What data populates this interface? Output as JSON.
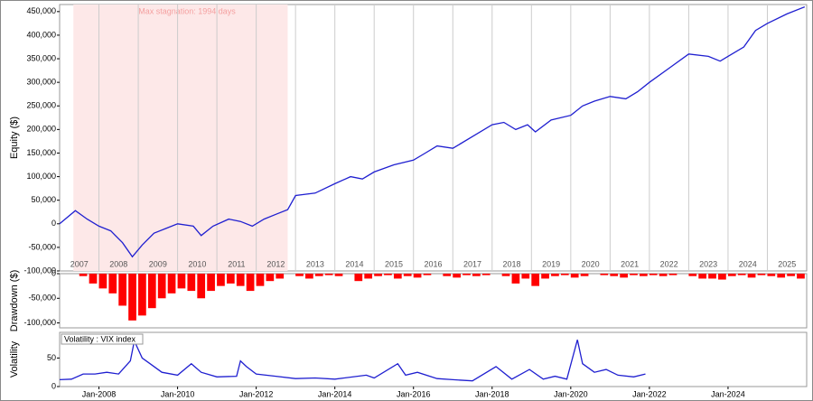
{
  "chart_data": [
    {
      "type": "line",
      "y_label": "Equity ($)",
      "xlim": [
        2007,
        2026
      ],
      "ylim": [
        -100000,
        465000
      ],
      "yticks": [
        {
          "value": -100000,
          "label": "-100,000"
        },
        {
          "value": -50000,
          "label": "-50,000"
        },
        0,
        {
          "value": 50000,
          "label": "50,000"
        },
        {
          "value": 100000,
          "label": "100,000"
        },
        {
          "value": 150000,
          "label": "150,000"
        },
        {
          "value": 200000,
          "label": "200,000"
        },
        {
          "value": 250000,
          "label": "250,000"
        },
        {
          "value": 300000,
          "label": "300,000"
        },
        {
          "value": 350000,
          "label": "350,000"
        },
        {
          "value": 400000,
          "label": "400,000"
        },
        {
          "value": 450000,
          "label": "450,000"
        }
      ],
      "xticks": [
        {
          "value": 2007,
          "label": "2007"
        },
        {
          "value": 2008,
          "label": "2008"
        },
        {
          "value": 2009,
          "label": "2009"
        },
        {
          "value": 2010,
          "label": "2010"
        },
        {
          "value": 2011,
          "label": "2011"
        },
        {
          "value": 2012,
          "label": "2012"
        },
        {
          "value": 2013,
          "label": "2013"
        },
        {
          "value": 2014,
          "label": "2014"
        },
        {
          "value": 2015,
          "label": "2015"
        },
        {
          "value": 2016,
          "label": "2016"
        },
        {
          "value": 2017,
          "label": "2017"
        },
        {
          "value": 2018,
          "label": "2018"
        },
        {
          "value": 2019,
          "label": "2019"
        },
        {
          "value": 2020,
          "label": "2020"
        },
        {
          "value": 2021,
          "label": "2021"
        },
        {
          "value": 2022,
          "label": "2022"
        },
        {
          "value": 2023,
          "label": "2023"
        },
        {
          "value": 2024,
          "label": "2024"
        },
        {
          "value": 2025,
          "label": "2025"
        }
      ],
      "annotation": {
        "text": "Max stagnation: 1994 days",
        "span": [
          2007.35,
          2012.8
        ],
        "color": "#fde8e8"
      },
      "series": [
        {
          "color": "#1f1fd0",
          "x": [
            2007.0,
            2007.4,
            2007.7,
            2008.0,
            2008.3,
            2008.6,
            2008.85,
            2009.1,
            2009.4,
            2009.7,
            2010.0,
            2010.4,
            2010.6,
            2010.9,
            2011.3,
            2011.6,
            2011.9,
            2012.2,
            2012.5,
            2012.8,
            2013.0,
            2013.5,
            2014.0,
            2014.4,
            2014.7,
            2015.0,
            2015.5,
            2016.0,
            2016.3,
            2016.6,
            2017.0,
            2017.5,
            2018.0,
            2018.3,
            2018.6,
            2018.9,
            2019.1,
            2019.5,
            2020.0,
            2020.3,
            2020.6,
            2021.0,
            2021.4,
            2021.7,
            2022.0,
            2022.5,
            2023.0,
            2023.5,
            2023.8,
            2024.0,
            2024.4,
            2024.7,
            2025.0,
            2025.5,
            2025.95
          ],
          "values": [
            0,
            28000,
            10000,
            -5000,
            -15000,
            -40000,
            -70000,
            -45000,
            -20000,
            -10000,
            0,
            -5000,
            -25000,
            -5000,
            10000,
            5000,
            -5000,
            10000,
            20000,
            30000,
            60000,
            65000,
            85000,
            100000,
            95000,
            110000,
            125000,
            135000,
            150000,
            165000,
            160000,
            185000,
            210000,
            215000,
            200000,
            210000,
            195000,
            220000,
            230000,
            250000,
            260000,
            270000,
            265000,
            280000,
            300000,
            330000,
            360000,
            355000,
            345000,
            355000,
            375000,
            410000,
            425000,
            445000,
            460000
          ]
        }
      ]
    },
    {
      "type": "bar",
      "y_label": "Drawdown ($)",
      "xlim": [
        2007,
        2026
      ],
      "ylim": [
        -110000,
        0
      ],
      "yticks": [
        0,
        {
          "value": -50000,
          "label": "-50,000"
        },
        {
          "value": -100000,
          "label": "-100,000"
        }
      ],
      "series": [
        {
          "color": "#ff0000",
          "x": [
            2007.0,
            2007.25,
            2007.5,
            2007.75,
            2008.0,
            2008.25,
            2008.5,
            2008.75,
            2009.0,
            2009.25,
            2009.5,
            2009.75,
            2010.0,
            2010.25,
            2010.5,
            2010.75,
            2011.0,
            2011.25,
            2011.5,
            2011.75,
            2012.0,
            2012.25,
            2012.5,
            2012.75,
            2013.0,
            2013.25,
            2013.5,
            2013.75,
            2014.0,
            2014.25,
            2014.5,
            2014.75,
            2015.0,
            2015.25,
            2015.5,
            2015.75,
            2016.0,
            2016.25,
            2016.5,
            2016.75,
            2017.0,
            2017.25,
            2017.5,
            2017.75,
            2018.0,
            2018.25,
            2018.5,
            2018.75,
            2019.0,
            2019.25,
            2019.5,
            2019.75,
            2020.0,
            2020.25,
            2020.5,
            2020.75,
            2021.0,
            2021.25,
            2021.5,
            2021.75,
            2022.0,
            2022.25,
            2022.5,
            2022.75,
            2023.0,
            2023.25,
            2023.5,
            2023.75,
            2024.0,
            2024.25,
            2024.5,
            2024.75,
            2025.0,
            2025.25,
            2025.5,
            2025.75
          ],
          "values": [
            0,
            0,
            -5000,
            -20000,
            -30000,
            -40000,
            -65000,
            -95000,
            -85000,
            -70000,
            -50000,
            -40000,
            -30000,
            -35000,
            -50000,
            -35000,
            -25000,
            -20000,
            -25000,
            -35000,
            -25000,
            -15000,
            -10000,
            0,
            -5000,
            -10000,
            -5000,
            -3000,
            -5000,
            0,
            -15000,
            -10000,
            -5000,
            -3000,
            -10000,
            -5000,
            -8000,
            -3000,
            0,
            -5000,
            -8000,
            -3000,
            -5000,
            -3000,
            0,
            -5000,
            -20000,
            -10000,
            -25000,
            -10000,
            -5000,
            -3000,
            -8000,
            -5000,
            0,
            -3000,
            -5000,
            -8000,
            -3000,
            -5000,
            -3000,
            -5000,
            -3000,
            0,
            -5000,
            -10000,
            -10000,
            -12000,
            -5000,
            -3000,
            -8000,
            -3000,
            -5000,
            -8000,
            -5000,
            -10000
          ]
        }
      ]
    },
    {
      "type": "line",
      "y_label": "Volatility",
      "xlim": [
        2007,
        2026
      ],
      "ylim": [
        0,
        95
      ],
      "yticks": [
        0,
        50
      ],
      "xticks": [
        {
          "value": 2008,
          "label": "Jan-2008"
        },
        {
          "value": 2010,
          "label": "Jan-2010"
        },
        {
          "value": 2012,
          "label": "Jan-2012"
        },
        {
          "value": 2014,
          "label": "Jan-2014"
        },
        {
          "value": 2016,
          "label": "Jan-2016"
        },
        {
          "value": 2018,
          "label": "Jan-2018"
        },
        {
          "value": 2020,
          "label": "Jan-2020"
        },
        {
          "value": 2022,
          "label": "Jan-2022"
        },
        {
          "value": 2024,
          "label": "Jan-2024"
        }
      ],
      "series": [
        {
          "name": "Volatility : VIX index",
          "color": "#1f1fd0",
          "x": [
            2007.0,
            2007.3,
            2007.6,
            2007.9,
            2008.2,
            2008.5,
            2008.8,
            2008.9,
            2009.1,
            2009.3,
            2009.6,
            2010.0,
            2010.35,
            2010.6,
            2011.0,
            2011.5,
            2011.6,
            2011.75,
            2012.0,
            2012.5,
            2013.0,
            2013.5,
            2014.0,
            2014.8,
            2015.0,
            2015.6,
            2015.8,
            2016.1,
            2016.6,
            2017.0,
            2017.5,
            2018.1,
            2018.5,
            2018.95,
            2019.3,
            2019.6,
            2019.9,
            2020.17,
            2020.3,
            2020.6,
            2020.9,
            2021.2,
            2021.6,
            2021.9
          ],
          "values": [
            12,
            13,
            22,
            22,
            25,
            22,
            45,
            80,
            50,
            40,
            25,
            20,
            40,
            25,
            17,
            18,
            45,
            35,
            22,
            18,
            14,
            15,
            13,
            20,
            15,
            40,
            20,
            25,
            14,
            12,
            10,
            35,
            13,
            30,
            13,
            18,
            13,
            82,
            40,
            25,
            30,
            20,
            17,
            22
          ]
        }
      ]
    }
  ]
}
